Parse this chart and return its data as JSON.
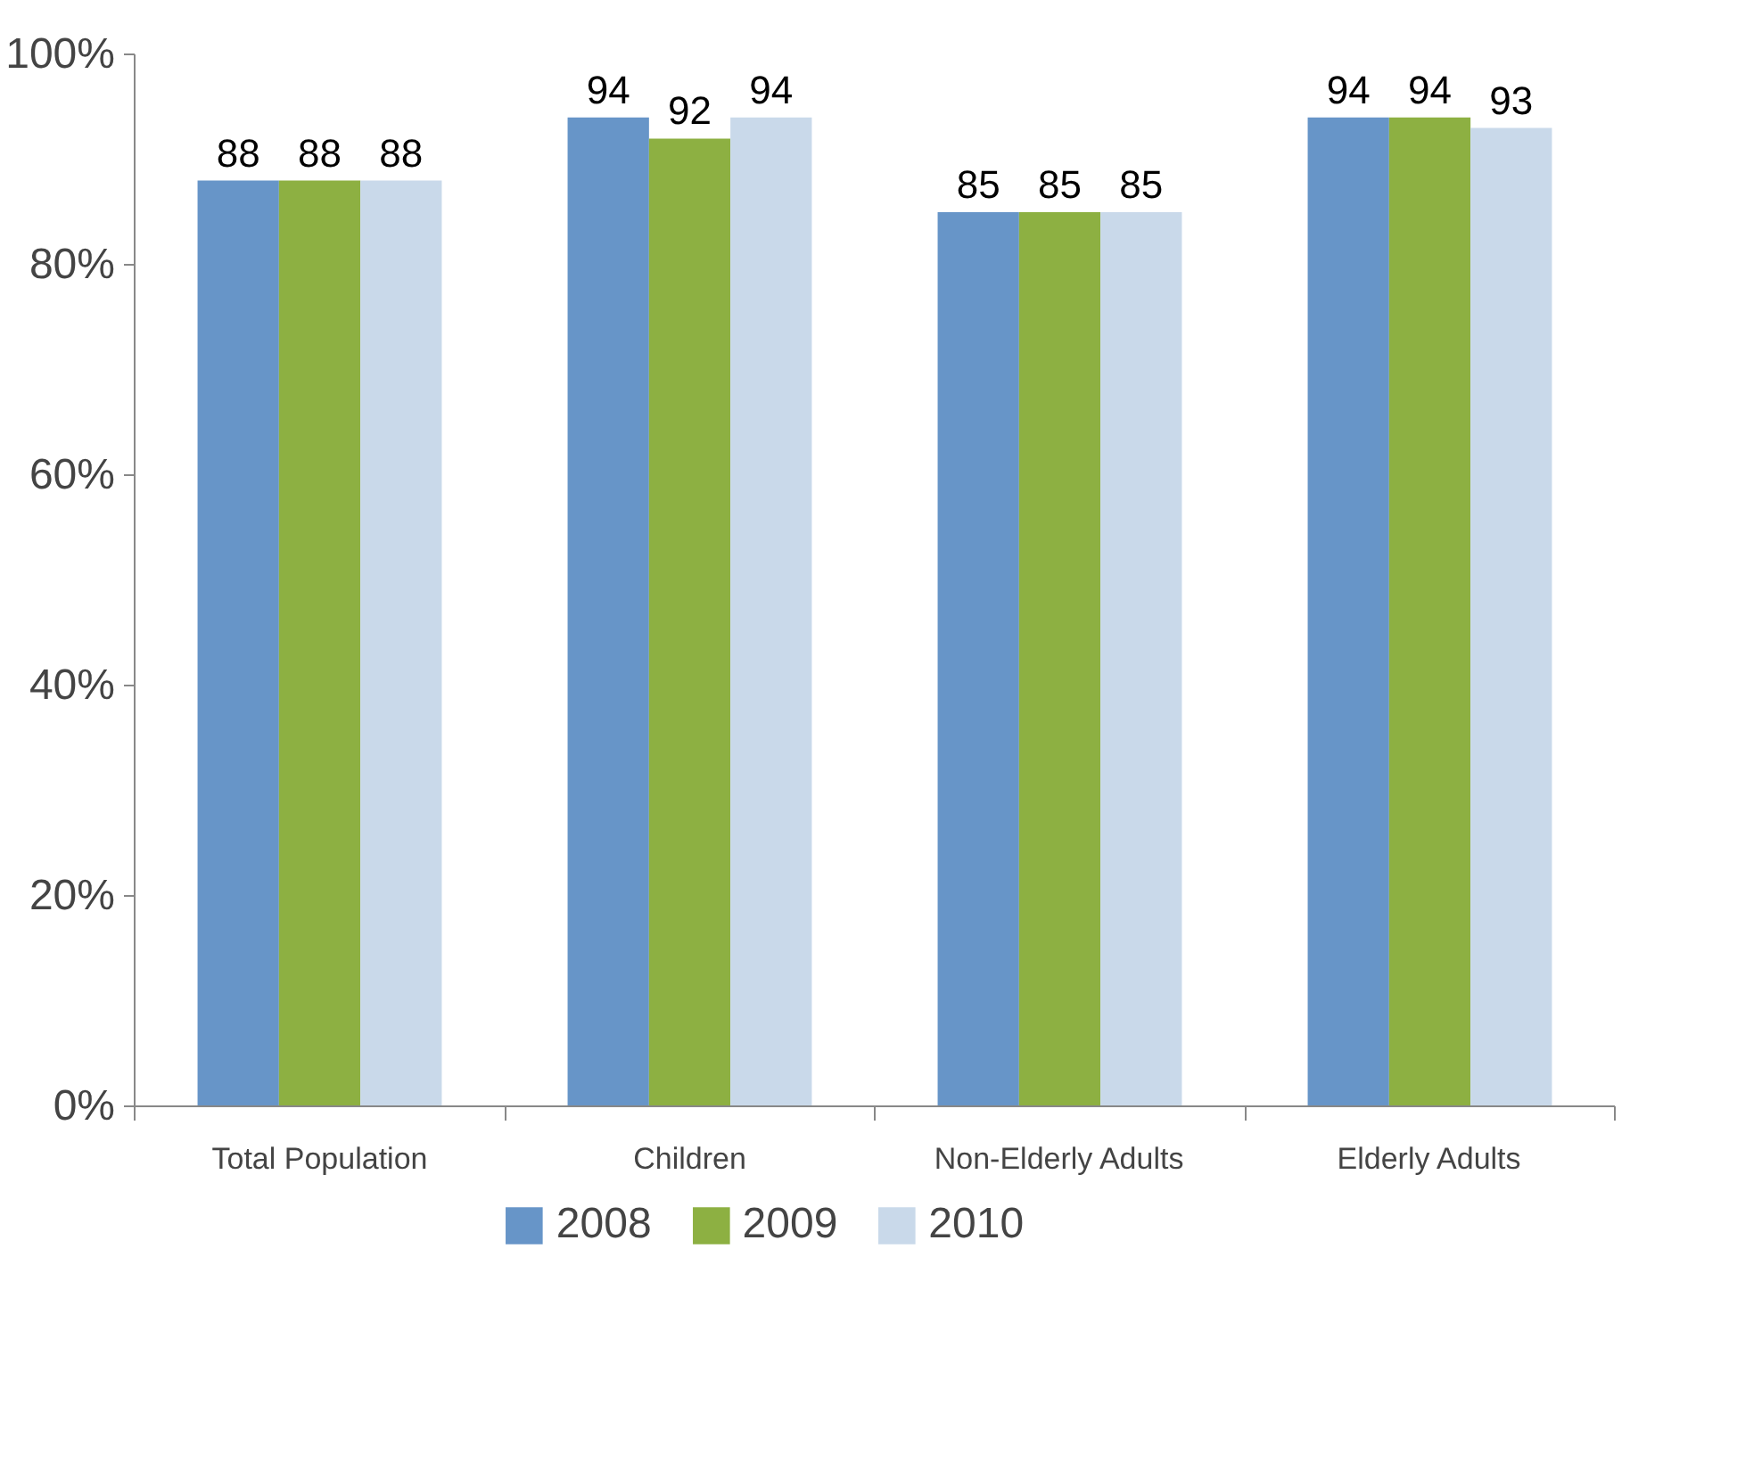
{
  "chart_data": {
    "type": "bar",
    "categories": [
      "Total Population",
      "Children",
      "Non-Elderly Adults",
      "Elderly Adults"
    ],
    "series": [
      {
        "name": "2008",
        "color": "#6795c8",
        "values": [
          88,
          94,
          85,
          94
        ]
      },
      {
        "name": "2009",
        "color": "#8db042",
        "values": [
          88,
          92,
          85,
          94
        ]
      },
      {
        "name": "2010",
        "color": "#c9d9ea",
        "values": [
          88,
          94,
          85,
          93
        ]
      }
    ],
    "ylim": [
      0,
      100
    ],
    "yticks": [
      {
        "value": 0,
        "label": "0%"
      },
      {
        "value": 20,
        "label": "20%"
      },
      {
        "value": 40,
        "label": "40%"
      },
      {
        "value": 60,
        "label": "60%"
      },
      {
        "value": 80,
        "label": "80%"
      },
      {
        "value": 100,
        "label": "100%"
      }
    ],
    "data_labels": true,
    "legend": "bottom"
  }
}
